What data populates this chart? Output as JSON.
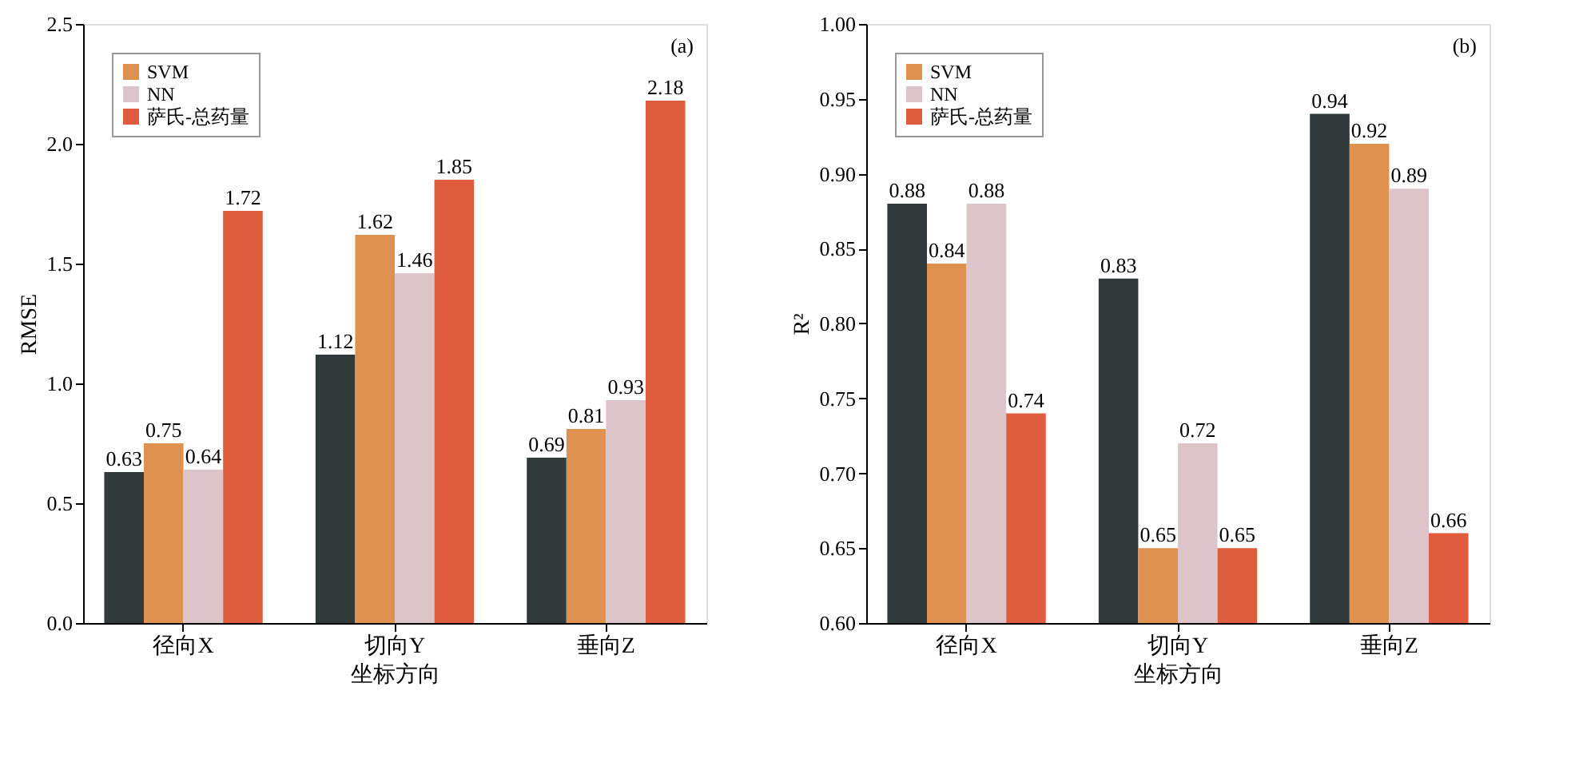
{
  "chart_data": [
    {
      "type": "bar",
      "categories": [
        "径向X",
        "切向Y",
        "垂向Z"
      ],
      "xlabel": "坐标方向",
      "ylabel": "RMSE",
      "annotations": [
        "(a)"
      ],
      "series": [
        {
          "color": "#313a3a",
          "values": [
            0.63,
            1.12,
            0.69
          ]
        },
        {
          "name": "SVM",
          "color": "#df9150",
          "values": [
            0.75,
            1.62,
            0.81
          ]
        },
        {
          "name": "NN",
          "color": "#dcc4c9",
          "values": [
            0.64,
            1.46,
            0.93
          ]
        },
        {
          "name": "萨氏-总药量",
          "color": "#e05c3f",
          "values": [
            1.72,
            1.85,
            2.18
          ]
        }
      ],
      "ylim": [
        0,
        2.5
      ],
      "yticks": [
        {
          "value": 0,
          "label": "0.0"
        },
        0.5,
        {
          "value": 1,
          "label": "1.0"
        },
        1.5,
        {
          "value": 2,
          "label": "2.0"
        },
        2.5
      ],
      "data_labels": true,
      "legend": "top left",
      "grid": false
    },
    {
      "type": "bar",
      "categories": [
        "径向X",
        "切向Y",
        "垂向Z"
      ],
      "xlabel": "坐标方向",
      "ylabel": "R²",
      "annotations": [
        "(b)"
      ],
      "series": [
        {
          "color": "#313a3a",
          "values": [
            0.88,
            0.83,
            0.94
          ]
        },
        {
          "name": "SVM",
          "color": "#df9150",
          "values": [
            0.84,
            0.65,
            0.92
          ]
        },
        {
          "name": "NN",
          "color": "#dcc4c9",
          "values": [
            0.88,
            0.72,
            0.89
          ]
        },
        {
          "name": "萨氏-总药量",
          "color": "#e05c3f",
          "values": [
            0.74,
            0.65,
            0.66
          ]
        }
      ],
      "ylim": [
        0.6,
        1.0
      ],
      "yticks": [
        {
          "value": 0.6,
          "label": "0.60"
        },
        0.65,
        {
          "value": 0.7,
          "label": "0.70"
        },
        0.75,
        {
          "value": 0.8,
          "label": "0.80"
        },
        0.85,
        {
          "value": 0.9,
          "label": "0.90"
        },
        0.95,
        {
          "value": 1.0,
          "label": "1.00"
        }
      ],
      "data_labels": true,
      "legend": "top left",
      "grid": false
    }
  ]
}
